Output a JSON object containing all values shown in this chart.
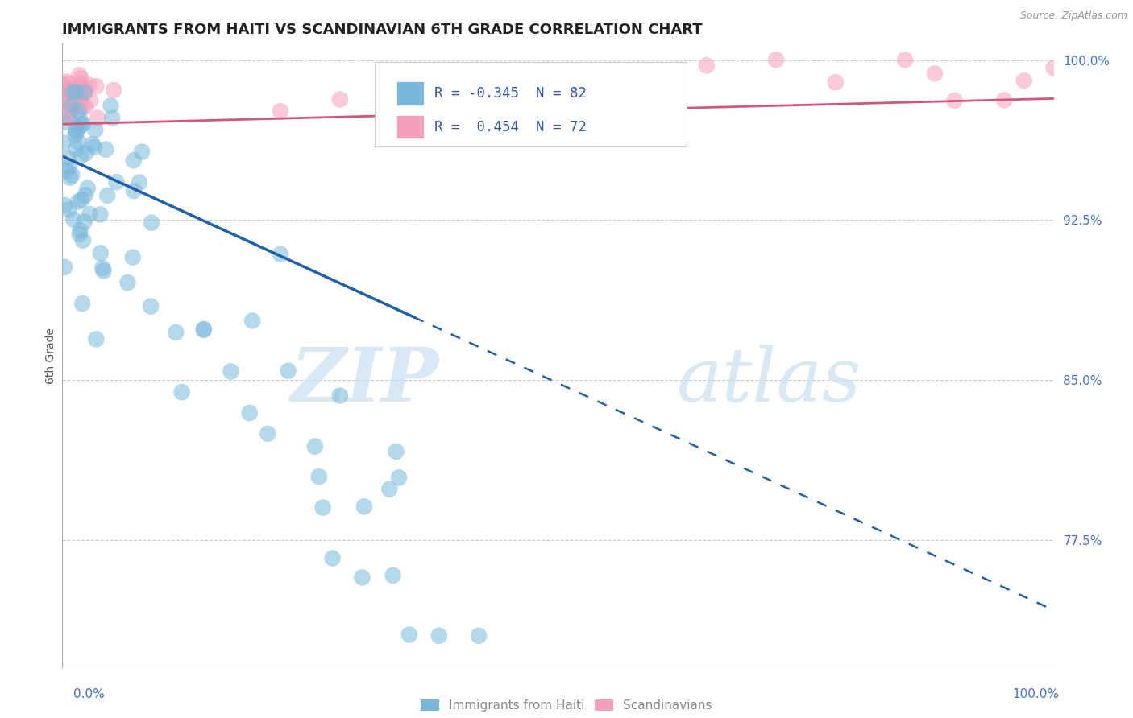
{
  "title": "IMMIGRANTS FROM HAITI VS SCANDINAVIAN 6TH GRADE CORRELATION CHART",
  "source": "Source: ZipAtlas.com",
  "ylabel": "6th Grade",
  "ylabel_right_ticks": [
    "100.0%",
    "92.5%",
    "85.0%",
    "77.5%"
  ],
  "ylabel_right_values": [
    1.0,
    0.925,
    0.85,
    0.775
  ],
  "xlim": [
    0.0,
    1.0
  ],
  "ylim": [
    0.715,
    1.008
  ],
  "haiti_R": "-0.345",
  "haiti_N": "82",
  "scand_R": "0.454",
  "scand_N": "72",
  "haiti_color": "#7ab8db",
  "scand_color": "#f4a0bc",
  "watermark_zip": "ZIP",
  "watermark_atlas": "atlas",
  "legend_label_haiti": "Immigrants from Haiti",
  "legend_label_scand": "Scandinavians",
  "scand_line_color": "#d4547a",
  "haiti_line_color": "#2060a8"
}
